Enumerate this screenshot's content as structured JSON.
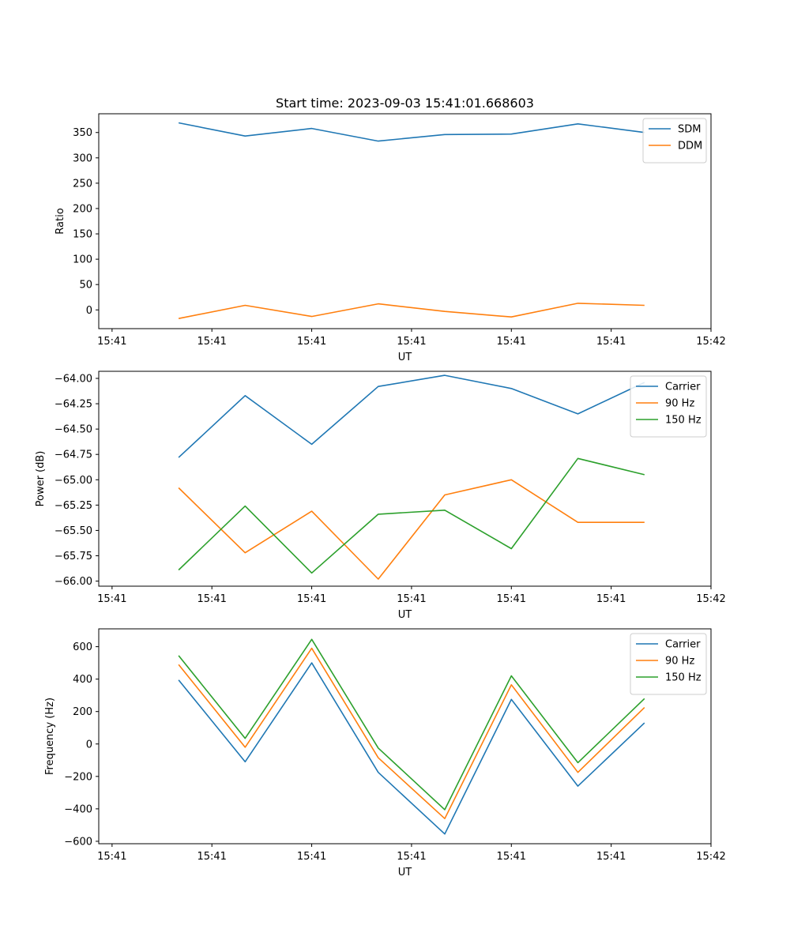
{
  "chart_data": [
    {
      "type": "line",
      "title": "Start time: 2023-09-03 15:41:01.668603",
      "xlabel": "UT",
      "ylabel": "Ratio",
      "x": [
        1.5,
        2,
        2.5,
        3,
        3.5,
        4,
        4.5,
        5
      ],
      "xticks": [
        1,
        1.75,
        2.5,
        3.25,
        4,
        4.75,
        5.5
      ],
      "xtick_labels": [
        "15:41",
        "15:41",
        "15:41",
        "15:41",
        "15:41",
        "15:41",
        "15:42"
      ],
      "xlim": [
        0.9,
        5.5
      ],
      "ylim": [
        -37,
        387
      ],
      "yticks": [
        0,
        50,
        100,
        150,
        200,
        250,
        300,
        350
      ],
      "ytick_labels": [
        "0",
        "50",
        "100",
        "150",
        "200",
        "250",
        "300",
        "350"
      ],
      "legend_position": "top-right",
      "series": [
        {
          "name": "SDM",
          "color": "#1f77b4",
          "values": [
            369,
            343,
            358,
            333,
            346,
            347,
            367,
            350
          ]
        },
        {
          "name": "DDM",
          "color": "#ff7f0e",
          "values": [
            -17,
            9,
            -13,
            12,
            -3,
            -14,
            13,
            9
          ]
        }
      ]
    },
    {
      "type": "line",
      "title": "",
      "xlabel": "UT",
      "ylabel": "Power (dB)",
      "x": [
        1.5,
        2,
        2.5,
        3,
        3.5,
        4,
        4.5,
        5
      ],
      "xticks": [
        1,
        1.75,
        2.5,
        3.25,
        4,
        4.75,
        5.5
      ],
      "xtick_labels": [
        "15:41",
        "15:41",
        "15:41",
        "15:41",
        "15:41",
        "15:41",
        "15:42"
      ],
      "xlim": [
        0.9,
        5.5
      ],
      "ylim": [
        -66.05,
        -63.93
      ],
      "yticks": [
        -66.0,
        -65.75,
        -65.5,
        -65.25,
        -65.0,
        -64.75,
        -64.5,
        -64.25,
        -64.0
      ],
      "ytick_labels": [
        "−66.00",
        "−65.75",
        "−65.50",
        "−65.25",
        "−65.00",
        "−64.75",
        "−64.50",
        "−64.25",
        "−64.00"
      ],
      "legend_position": "top-right",
      "series": [
        {
          "name": "Carrier",
          "color": "#1f77b4",
          "values": [
            -64.78,
            -64.17,
            -64.65,
            -64.08,
            -63.97,
            -64.1,
            -64.35,
            -64.04
          ]
        },
        {
          "name": "90 Hz",
          "color": "#ff7f0e",
          "values": [
            -65.08,
            -65.72,
            -65.31,
            -65.98,
            -65.15,
            -65.0,
            -65.42,
            -65.42
          ]
        },
        {
          "name": "150 Hz",
          "color": "#2ca02c",
          "values": [
            -65.89,
            -65.26,
            -65.92,
            -65.34,
            -65.3,
            -65.68,
            -64.79,
            -64.95
          ]
        }
      ]
    },
    {
      "type": "line",
      "title": "",
      "xlabel": "UT",
      "ylabel": "Frequency (Hz)",
      "x": [
        1.5,
        2,
        2.5,
        3,
        3.5,
        4,
        4.5,
        5
      ],
      "xticks": [
        1,
        1.75,
        2.5,
        3.25,
        4,
        4.75,
        5.5
      ],
      "xtick_labels": [
        "15:41",
        "15:41",
        "15:41",
        "15:41",
        "15:41",
        "15:41",
        "15:42"
      ],
      "xlim": [
        0.9,
        5.5
      ],
      "ylim": [
        -615,
        710
      ],
      "yticks": [
        -600,
        -400,
        -200,
        0,
        200,
        400,
        600
      ],
      "ytick_labels": [
        "−600",
        "−400",
        "−200",
        "0",
        "200",
        "400",
        "600"
      ],
      "legend_position": "top-right",
      "series": [
        {
          "name": "Carrier",
          "color": "#1f77b4",
          "values": [
            395,
            -110,
            500,
            -175,
            -555,
            275,
            -260,
            130
          ]
        },
        {
          "name": "90 Hz",
          "color": "#ff7f0e",
          "values": [
            490,
            -20,
            590,
            -85,
            -460,
            365,
            -175,
            225
          ]
        },
        {
          "name": "150 Hz",
          "color": "#2ca02c",
          "values": [
            545,
            35,
            645,
            -25,
            -405,
            420,
            -115,
            280
          ]
        }
      ]
    }
  ]
}
